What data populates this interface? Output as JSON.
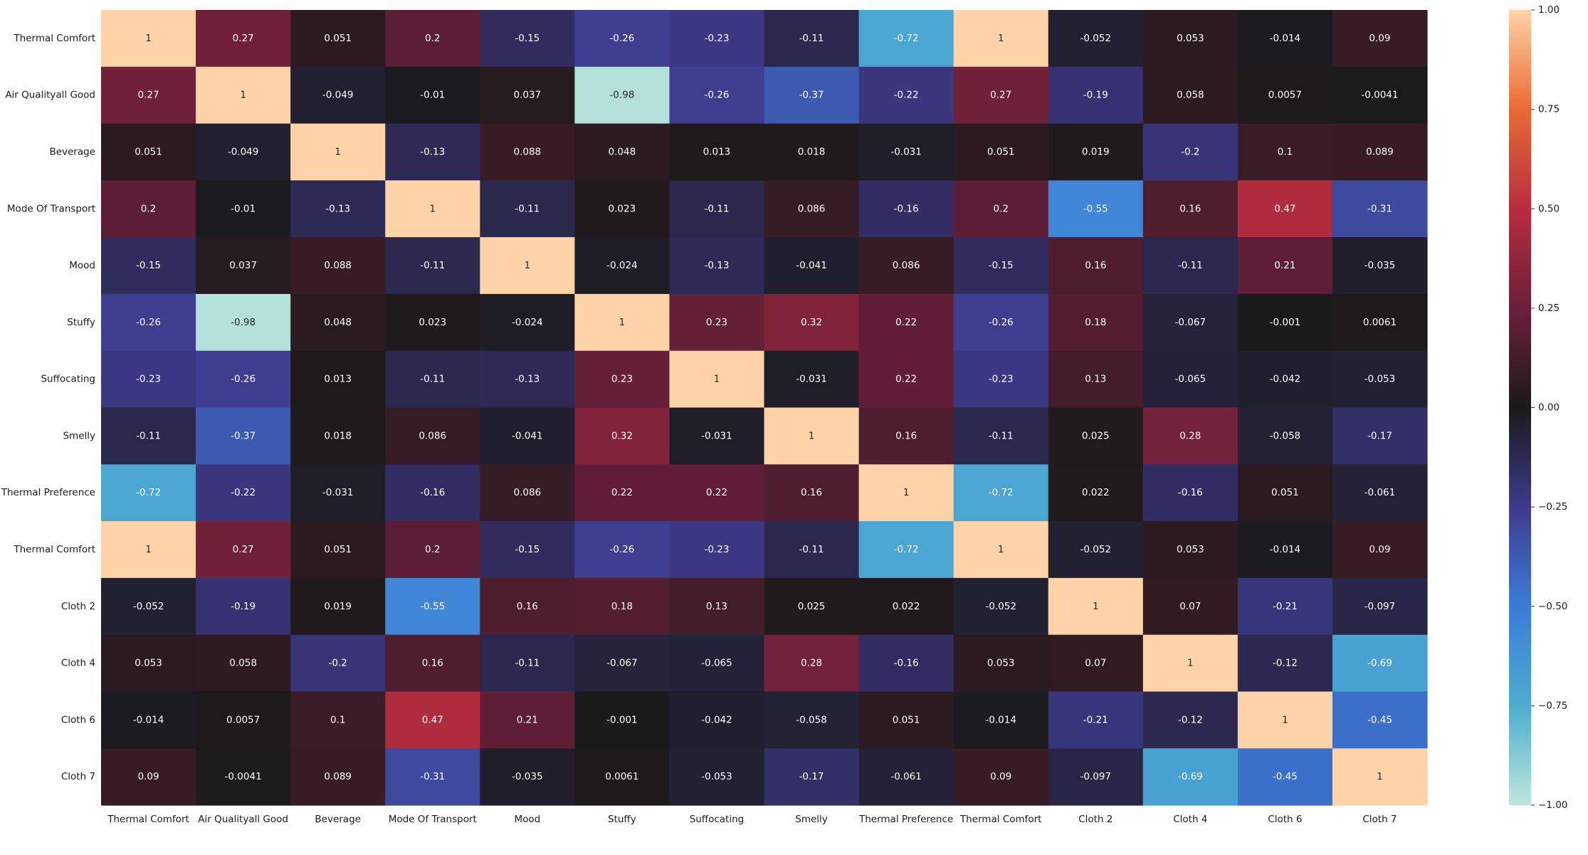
{
  "chart_data": {
    "type": "heatmap",
    "title": "",
    "xlabel": "",
    "ylabel": "",
    "x_labels": [
      "Thermal Comfort",
      "Air Qualityall Good",
      "Beverage",
      "Mode Of Transport",
      "Mood",
      "Stuffy",
      "Suffocating",
      "Smelly",
      "Thermal Preference",
      "Thermal Comfort",
      "Cloth 2",
      "Cloth 4",
      "Cloth 6",
      "Cloth 7"
    ],
    "y_labels": [
      "Thermal Comfort",
      "Air Qualityall Good",
      "Beverage",
      "Mode Of Transport",
      "Mood",
      "Stuffy",
      "Suffocating",
      "Smelly",
      "Thermal Preference",
      "Thermal Comfort",
      "Cloth 2",
      "Cloth 4",
      "Cloth 6",
      "Cloth 7"
    ],
    "values": [
      [
        "1",
        "0.27",
        "0.051",
        "0.2",
        "-0.15",
        "-0.26",
        "-0.23",
        "-0.11",
        "-0.72",
        "1",
        "-0.052",
        "0.053",
        "-0.014",
        "0.09"
      ],
      [
        "0.27",
        "1",
        "-0.049",
        "-0.01",
        "0.037",
        "-0.98",
        "-0.26",
        "-0.37",
        "-0.22",
        "0.27",
        "-0.19",
        "0.058",
        "0.0057",
        "-0.0041"
      ],
      [
        "0.051",
        "-0.049",
        "1",
        "-0.13",
        "0.088",
        "0.048",
        "0.013",
        "0.018",
        "-0.031",
        "0.051",
        "0.019",
        "-0.2",
        "0.1",
        "0.089"
      ],
      [
        "0.2",
        "-0.01",
        "-0.13",
        "1",
        "-0.11",
        "0.023",
        "-0.11",
        "0.086",
        "-0.16",
        "0.2",
        "-0.55",
        "0.16",
        "0.47",
        "-0.31"
      ],
      [
        "-0.15",
        "0.037",
        "0.088",
        "-0.11",
        "1",
        "-0.024",
        "-0.13",
        "-0.041",
        "0.086",
        "-0.15",
        "0.16",
        "-0.11",
        "0.21",
        "-0.035"
      ],
      [
        "-0.26",
        "-0.98",
        "0.048",
        "0.023",
        "-0.024",
        "1",
        "0.23",
        "0.32",
        "0.22",
        "-0.26",
        "0.18",
        "-0.067",
        "-0.001",
        "0.0061"
      ],
      [
        "-0.23",
        "-0.26",
        "0.013",
        "-0.11",
        "-0.13",
        "0.23",
        "1",
        "-0.031",
        "0.22",
        "-0.23",
        "0.13",
        "-0.065",
        "-0.042",
        "-0.053"
      ],
      [
        "-0.11",
        "-0.37",
        "0.018",
        "0.086",
        "-0.041",
        "0.32",
        "-0.031",
        "1",
        "0.16",
        "-0.11",
        "0.025",
        "0.28",
        "-0.058",
        "-0.17"
      ],
      [
        "-0.72",
        "-0.22",
        "-0.031",
        "-0.16",
        "0.086",
        "0.22",
        "0.22",
        "0.16",
        "1",
        "-0.72",
        "0.022",
        "-0.16",
        "0.051",
        "-0.061"
      ],
      [
        "1",
        "0.27",
        "0.051",
        "0.2",
        "-0.15",
        "-0.26",
        "-0.23",
        "-0.11",
        "-0.72",
        "1",
        "-0.052",
        "0.053",
        "-0.014",
        "0.09"
      ],
      [
        "-0.052",
        "-0.19",
        "0.019",
        "-0.55",
        "0.16",
        "0.18",
        "0.13",
        "0.025",
        "0.022",
        "-0.052",
        "1",
        "0.07",
        "-0.21",
        "-0.097"
      ],
      [
        "0.053",
        "0.058",
        "-0.2",
        "0.16",
        "-0.11",
        "-0.067",
        "-0.065",
        "0.28",
        "-0.16",
        "0.053",
        "0.07",
        "1",
        "-0.12",
        "-0.69"
      ],
      [
        "-0.014",
        "0.0057",
        "0.1",
        "0.47",
        "0.21",
        "-0.001",
        "-0.042",
        "-0.058",
        "0.051",
        "-0.014",
        "-0.21",
        "-0.12",
        "1",
        "-0.45"
      ],
      [
        "0.09",
        "-0.0041",
        "0.089",
        "-0.31",
        "-0.035",
        "0.0061",
        "-0.053",
        "-0.17",
        "-0.061",
        "0.09",
        "-0.097",
        "-0.69",
        "-0.45",
        "1"
      ]
    ],
    "colorscale": {
      "name": "icefire",
      "vmin": -1.0,
      "vmax": 1.0,
      "stops": [
        [
          -1.0,
          "#bde7db"
        ],
        [
          -0.75,
          "#4dadd0"
        ],
        [
          -0.5,
          "#3b7cd9"
        ],
        [
          -0.25,
          "#3f3a8c"
        ],
        [
          0.0,
          "#1a1a1a"
        ],
        [
          0.25,
          "#6b1f3a"
        ],
        [
          0.5,
          "#b82d3f"
        ],
        [
          0.75,
          "#ea6a34"
        ],
        [
          1.0,
          "#ffd3a8"
        ]
      ]
    },
    "colorbar_ticks": [
      "1.00",
      "0.75",
      "0.50",
      "0.25",
      "0.00",
      "−0.25",
      "−0.50",
      "−0.75",
      "−1.00"
    ]
  }
}
